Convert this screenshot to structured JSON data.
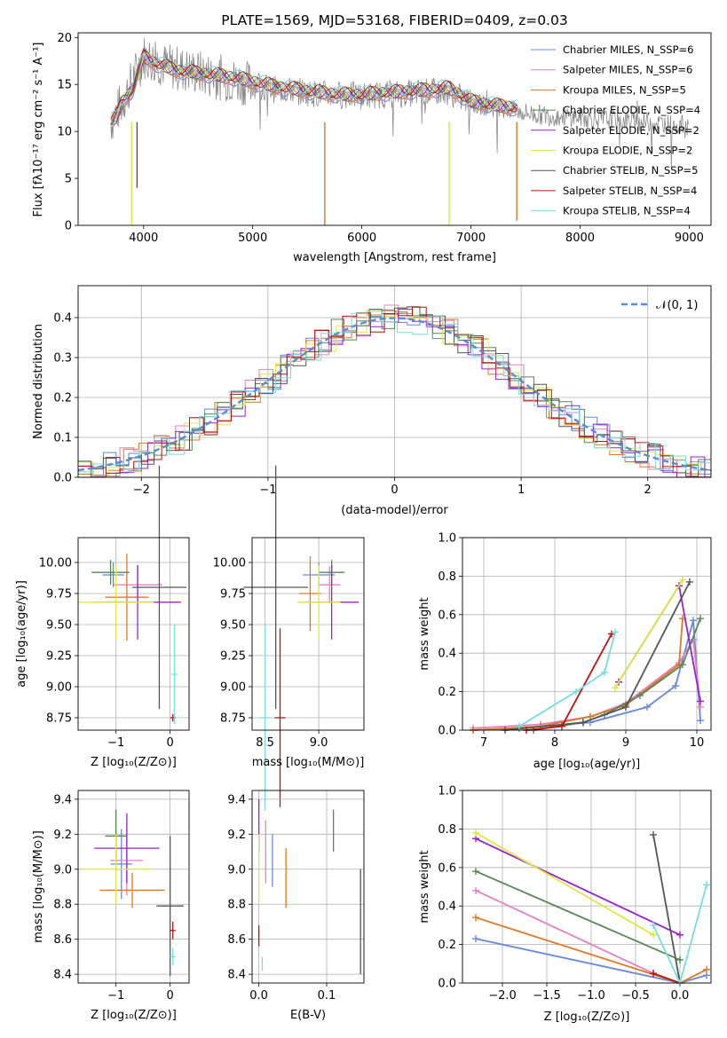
{
  "colors": [
    "#6688dd",
    "#e680c0",
    "#e07722",
    "#558855",
    "#9922cc",
    "#dde844",
    "#555555",
    "#bb1111",
    "#77dddd"
  ],
  "spectrum": {
    "title": "PLATE=1569, MJD=53168, FIBERID=0409, z=0.03",
    "xlabel": "wavelength [Angstrom, rest frame]",
    "ylabel": "Flux [fλ10⁻¹⁷ erg cm⁻² s⁻¹ A⁻¹]",
    "xticks": [
      "4000",
      "5000",
      "6000",
      "7000",
      "8000",
      "9000"
    ],
    "yticks": [
      "0",
      "5",
      "10",
      "15",
      "20"
    ],
    "legend": [
      "Chabrier MILES, N_SSP=6",
      "Salpeter MILES, N_SSP=6",
      "Kroupa MILES, N_SSP=5",
      "Chabrier ELODIE, N_SSP=4",
      "Salpeter ELODIE, N_SSP=2",
      "Kroupa ELODIE, N_SSP=2",
      "Chabrier STELIB, N_SSP=5",
      "Salpeter STELIB, N_SSP=4",
      "Kroupa STELIB, N_SSP=4"
    ]
  },
  "residuals": {
    "xlabel": "(data-model)/error",
    "ylabel": "Normed distribution",
    "xticks": [
      "−2",
      "−1",
      "0",
      "1",
      "2"
    ],
    "yticks": [
      "0.0",
      "0.1",
      "0.2",
      "0.3",
      "0.4"
    ],
    "legend": "𝒩(0, 1)"
  },
  "panels": {
    "age_z": {
      "xlabel": "Z [log₁₀(Z/Z⊙)]",
      "ylabel": "age  [log₁₀(age/yr)]",
      "xticks": [
        "−1",
        "0"
      ],
      "yticks": [
        "8.75",
        "9.00",
        "9.25",
        "9.50",
        "9.75",
        "10.00"
      ]
    },
    "age_mass": {
      "xlabel": "mass [log₁₀(M/M⊙)]",
      "xticks": [
        "8.5",
        "9.0"
      ],
      "yticks": [
        "8.75",
        "9.00",
        "9.25",
        "9.50",
        "9.75",
        "10.00"
      ]
    },
    "mw_age": {
      "xlabel": "age  [log₁₀(age/yr)]",
      "ylabel": "mass weight",
      "xticks": [
        "7",
        "8",
        "9",
        "10"
      ],
      "yticks": [
        "0.0",
        "0.2",
        "0.4",
        "0.6",
        "0.8",
        "1.0"
      ]
    },
    "mass_z": {
      "xlabel": "Z [log₁₀(Z/Z⊙)]",
      "ylabel": "mass [log₁₀(M/M⊙)]",
      "xticks": [
        "−1",
        "0"
      ],
      "yticks": [
        "8.4",
        "8.6",
        "8.8",
        "9.0",
        "9.2",
        "9.4"
      ]
    },
    "mass_ebv": {
      "xlabel": "E(B-V)",
      "xticks": [
        "0.0",
        "0.1"
      ],
      "yticks": [
        "8.4",
        "8.6",
        "8.8",
        "9.0",
        "9.2",
        "9.4"
      ]
    },
    "mw_z": {
      "xlabel": "Z [log₁₀(Z/Z⊙)]",
      "ylabel": "mass weight",
      "xticks": [
        "−2.0",
        "−1.5",
        "−1.0",
        "−0.5",
        "0.0"
      ],
      "yticks": [
        "0.0",
        "0.2",
        "0.4",
        "0.6",
        "0.8",
        "1.0"
      ]
    }
  },
  "chart_data": [
    {
      "type": "line",
      "x_range": [
        3400,
        9200
      ],
      "ylim": [
        0,
        20.5
      ],
      "series": [
        {
          "name": "Chabrier MILES, N_SSP=6",
          "x": [
            3700,
            3750,
            3800,
            3900,
            4000,
            4100,
            4300,
            4500,
            4800,
            5000,
            5200,
            5500,
            5800,
            6000,
            6200,
            6500,
            6800,
            7000,
            7200,
            7420
          ],
          "y": [
            11.0,
            11.5,
            13.0,
            14.5,
            18.0,
            17.3,
            16.5,
            16.2,
            15.8,
            15.3,
            14.8,
            14.3,
            13.9,
            13.9,
            14.1,
            14.3,
            14.6,
            13.2,
            12.8,
            12.5
          ]
        },
        {
          "name": "Data",
          "x": [
            3700,
            3800,
            4000,
            4200,
            4400,
            4600,
            4800,
            5000,
            5200,
            5400,
            5600,
            5800,
            6000,
            6200,
            6400,
            6600,
            6800,
            7000,
            7200,
            7400,
            7600,
            7800,
            8000,
            8200,
            8400,
            8600,
            8800,
            9000
          ],
          "y": [
            11,
            13,
            18,
            17,
            16.5,
            16,
            15.5,
            15,
            14.5,
            14.3,
            14,
            13.9,
            13.8,
            13.9,
            14,
            14.2,
            14.2,
            13,
            12.6,
            12.2,
            11.8,
            11.6,
            11.5,
            11.3,
            11.2,
            11.0,
            10.8,
            10.6
          ]
        }
      ]
    },
    {
      "type": "bar",
      "x_range": [
        -2.5,
        2.5
      ],
      "ylim": [
        0,
        0.48
      ],
      "series": [
        {
          "name": "𝒩(0, 1)",
          "mean": 0,
          "sigma": 1
        }
      ]
    },
    {
      "type": "scatter",
      "xlim": [
        -1.7,
        0.35
      ],
      "ylim": [
        8.65,
        10.2
      ],
      "points": [
        {
          "x": -1.05,
          "y": 9.9,
          "xerr": 0.2,
          "yerr": 0.1
        },
        {
          "x": -0.6,
          "y": 9.82,
          "xerr": 0.45,
          "yerr": 0.15
        },
        {
          "x": -0.8,
          "y": 9.72,
          "xerr": 0.4,
          "yerr": 0.35
        },
        {
          "x": -1.1,
          "y": 9.92,
          "xerr": 0.35,
          "yerr": 0.1
        },
        {
          "x": -0.6,
          "y": 9.68,
          "xerr": 0.8,
          "yerr": 0.3
        },
        {
          "x": -1.0,
          "y": 9.68,
          "xerr": 0.7,
          "yerr": 0.3
        },
        {
          "x": -0.2,
          "y": 9.8,
          "xerr": 0.5,
          "yerr": 0.98
        },
        {
          "x": 0.05,
          "y": 8.75,
          "xerr": 0.05,
          "yerr": 0.03
        },
        {
          "x": 0.08,
          "y": 9.1,
          "xerr": 0.05,
          "yerr": 0.4
        }
      ]
    },
    {
      "type": "scatter",
      "xlim": [
        8.38,
        9.42
      ],
      "ylim": [
        8.65,
        10.2
      ],
      "points": [
        {
          "x": 9.0,
          "y": 9.9,
          "xerr": 0.15,
          "yerr": 0.1
        },
        {
          "x": 9.1,
          "y": 9.82,
          "xerr": 0.1,
          "yerr": 0.15
        },
        {
          "x": 8.92,
          "y": 9.75,
          "xerr": 0.1,
          "yerr": 0.3
        },
        {
          "x": 9.12,
          "y": 9.92,
          "xerr": 0.12,
          "yerr": 0.1
        },
        {
          "x": 9.12,
          "y": 9.68,
          "xerr": 0.25,
          "yerr": 0.3
        },
        {
          "x": 9.0,
          "y": 9.68,
          "xerr": 0.2,
          "yerr": 0.3
        },
        {
          "x": 8.6,
          "y": 9.8,
          "xerr": 0.3,
          "yerr": 0.98
        },
        {
          "x": 8.64,
          "y": 8.75,
          "xerr": 0.05,
          "yerr": 0.72
        },
        {
          "x": 8.5,
          "y": 8.75,
          "xerr": 0.05,
          "yerr": 0.75
        }
      ]
    },
    {
      "type": "line",
      "xlim": [
        6.7,
        10.2
      ],
      "ylim": [
        0,
        1
      ],
      "series": [
        {
          "x": [
            6.85,
            7.5,
            8.5,
            9.3,
            9.7,
            9.95,
            10.05
          ],
          "y": [
            0.0,
            0.01,
            0.04,
            0.12,
            0.23,
            0.57,
            0.05
          ]
        },
        {
          "x": [
            6.85,
            7.8,
            8.5,
            9.0,
            9.75,
            9.95,
            10.05
          ],
          "y": [
            0.01,
            0.03,
            0.07,
            0.14,
            0.35,
            0.47,
            0.12
          ]
        },
        {
          "x": [
            6.85,
            7.8,
            8.5,
            9.0,
            9.75,
            9.8
          ],
          "y": [
            0.0,
            0.02,
            0.07,
            0.13,
            0.34,
            0.58
          ]
        },
        {
          "x": [
            7.7,
            8.4,
            8.7,
            9.2,
            9.8,
            10.05
          ],
          "y": [
            0.0,
            0.04,
            0.08,
            0.18,
            0.34,
            0.58
          ]
        },
        {
          "x": [
            8.9,
            9.75,
            10.05
          ],
          "y": [
            0.25,
            0.75,
            0.15
          ]
        },
        {
          "x": [
            8.85,
            9.8
          ],
          "y": [
            0.22,
            0.78
          ]
        },
        {
          "x": [
            7.3,
            8.4,
            9.0,
            9.9
          ],
          "y": [
            0.0,
            0.04,
            0.12,
            0.77
          ]
        },
        {
          "x": [
            7.6,
            8.1,
            8.8
          ],
          "y": [
            0.0,
            0.02,
            0.5
          ]
        },
        {
          "x": [
            7.5,
            8.3,
            8.7,
            8.85
          ],
          "y": [
            0.02,
            0.2,
            0.3,
            0.51
          ]
        }
      ]
    },
    {
      "type": "scatter",
      "xlim": [
        -1.7,
        0.35
      ],
      "ylim": [
        8.35,
        9.45
      ],
      "points": [
        {
          "x": -0.9,
          "y": 9.03,
          "xerr": 0.2,
          "yerr": 0.2
        },
        {
          "x": -0.8,
          "y": 9.05,
          "xerr": 0.3,
          "yerr": 0.2
        },
        {
          "x": -0.7,
          "y": 8.88,
          "xerr": 0.6,
          "yerr": 0.1
        },
        {
          "x": -1.0,
          "y": 9.19,
          "xerr": 0.2,
          "yerr": 0.15
        },
        {
          "x": -0.8,
          "y": 9.12,
          "xerr": 0.6,
          "yerr": 0.2
        },
        {
          "x": -1.0,
          "y": 9.0,
          "xerr": 0.65,
          "yerr": 0.2
        },
        {
          "x": 0.0,
          "y": 8.79,
          "xerr": 0.25,
          "yerr": 0.4
        },
        {
          "x": 0.05,
          "y": 8.65,
          "xerr": 0.05,
          "yerr": 0.05
        },
        {
          "x": 0.05,
          "y": 8.5,
          "xerr": 0.05,
          "yerr": 0.05
        }
      ]
    },
    {
      "type": "scatter",
      "xlim": [
        -0.01,
        0.155
      ],
      "ylim": [
        8.35,
        9.45
      ],
      "points": [
        {
          "x": 0.02,
          "y": 9.05,
          "yerr": 0.15
        },
        {
          "x": 0.01,
          "y": 9.1,
          "yerr": 0.18
        },
        {
          "x": 0.04,
          "y": 8.95,
          "yerr": 0.17
        },
        {
          "x": 0.11,
          "y": 9.22,
          "yerr": 0.12
        },
        {
          "x": 0.0,
          "y": 9.25,
          "yerr": 0.15
        },
        {
          "x": 0.0,
          "y": 9.0,
          "yerr": 0.2
        },
        {
          "x": 0.15,
          "y": 8.7,
          "yerr": 0.3
        },
        {
          "x": 0.0,
          "y": 8.62,
          "yerr": 0.06
        },
        {
          "x": 0.005,
          "y": 8.46,
          "yerr": 0.04
        }
      ]
    },
    {
      "type": "line",
      "xlim": [
        -2.45,
        0.35
      ],
      "ylim": [
        0,
        1
      ],
      "series": [
        {
          "x": [
            -2.3,
            0.0,
            0.3
          ],
          "y": [
            0.23,
            0.0,
            0.04
          ]
        },
        {
          "x": [
            -2.3,
            -0.3,
            0.0
          ],
          "y": [
            0.48,
            0.05,
            0.0
          ]
        },
        {
          "x": [
            -2.3,
            0.0,
            0.3
          ],
          "y": [
            0.34,
            0.0,
            0.07
          ]
        },
        {
          "x": [
            -2.3,
            0.0
          ],
          "y": [
            0.58,
            0.12
          ]
        },
        {
          "x": [
            -2.3,
            0.0
          ],
          "y": [
            0.75,
            0.25
          ]
        },
        {
          "x": [
            -2.3,
            -0.3
          ],
          "y": [
            0.78,
            0.25
          ]
        },
        {
          "x": [
            -0.3,
            0.0
          ],
          "y": [
            0.77,
            0.0
          ]
        },
        {
          "x": [
            -0.3,
            0.0
          ],
          "y": [
            0.05,
            0.0
          ]
        },
        {
          "x": [
            -0.3,
            0.0,
            0.3
          ],
          "y": [
            0.3,
            0.0,
            0.51
          ]
        }
      ]
    }
  ]
}
